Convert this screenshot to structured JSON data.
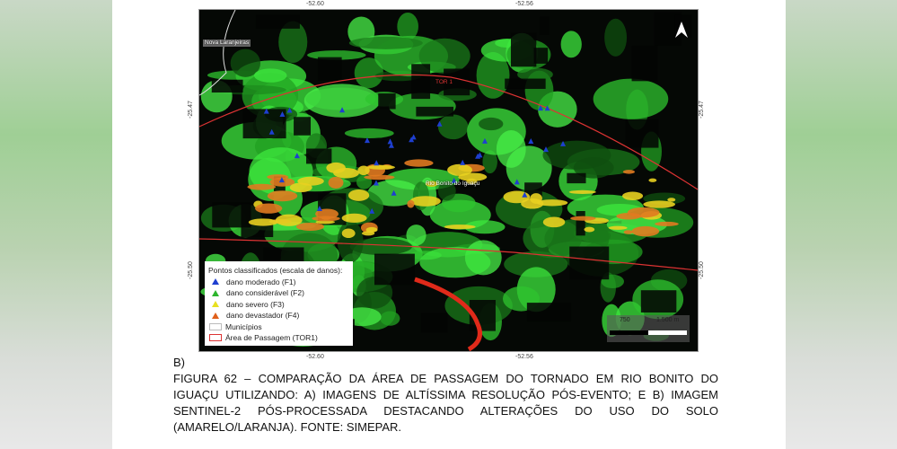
{
  "map": {
    "top_coords": [
      "-52.60",
      "-52.56"
    ],
    "bottom_coords": [
      "-52.60",
      "-52.56"
    ],
    "left_coords": [
      "-25.47",
      "-25.50"
    ],
    "right_coords": [
      "-25.47",
      "-25.50"
    ],
    "labels": {
      "municipality": "Nova Laranjeiras",
      "town": "Rio Bonito do Iguaçu",
      "track": "TOR 1"
    },
    "north_arrow_icon": "north-arrow-icon",
    "scale": {
      "mid": "750",
      "end": "1.500 m"
    },
    "legend": {
      "title": "Pontos classificados (escala de danos):",
      "items": [
        {
          "label": "dano moderado (F1)",
          "color": "#1e3fd0"
        },
        {
          "label": "dano considerável (F2)",
          "color": "#2db52d"
        },
        {
          "label": "dano severo (F3)",
          "color": "#e8e020"
        },
        {
          "label": "dano devastador (F4)",
          "color": "#e0601a"
        }
      ],
      "municipios": "Municípios",
      "area": "Área de Passagem (TOR1)"
    }
  },
  "caption": {
    "panel": "B)",
    "lines": [
      "FIGURA 62 – COMPARAÇÃO DA ÁREA DE PASSAGEM DO TORNADO EM RIO BONITO DO",
      "IGUAÇU UTILIZANDO: A) IMAGENS DE ALTÍSSIMA RESOLUÇÃO PÓS-EVENTO; E B) IMAGEM",
      "SENTINEL-2 PÓS-PROCESSADA DESTACANDO ALTERAÇÕES DO USO DO SOLO",
      "(AMARELO/LARANJA). FONTE: SIMEPAR."
    ]
  }
}
